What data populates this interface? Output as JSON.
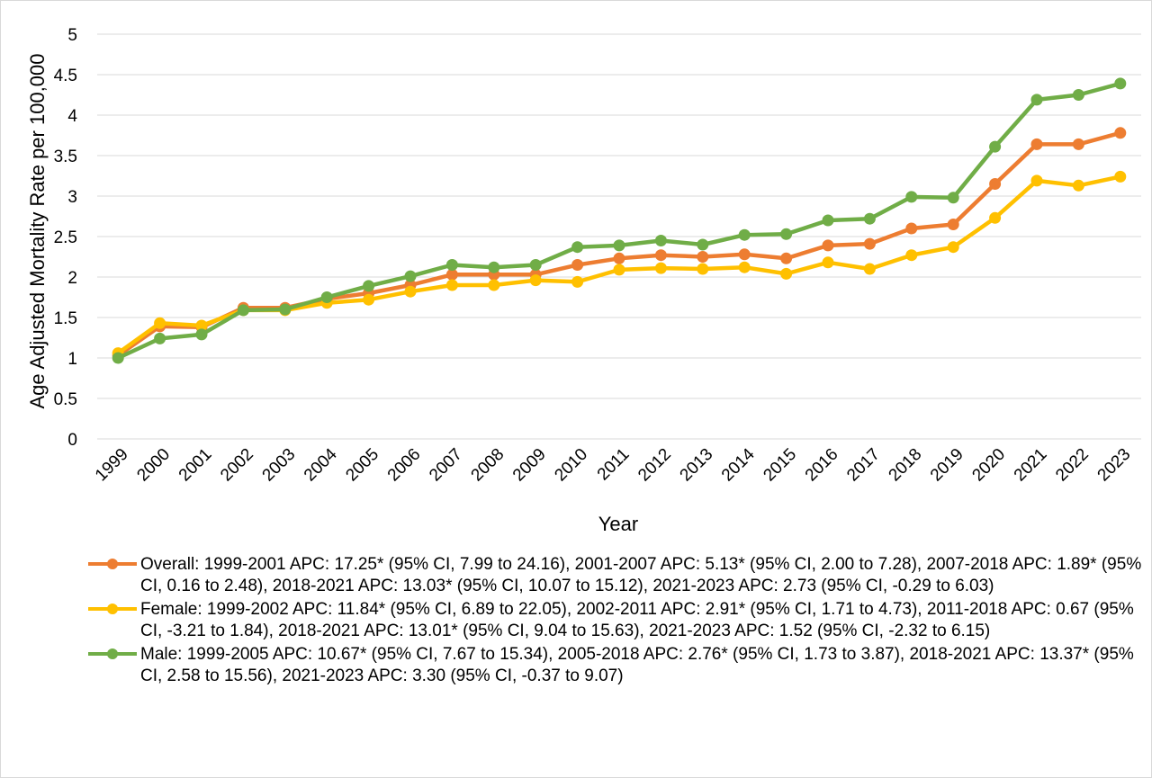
{
  "chart_data": {
    "type": "line",
    "xlabel": "Year",
    "ylabel": "Age Adjusted Mortality Rate per 100,000",
    "ylim": [
      0,
      5
    ],
    "yticks": [
      "0",
      "0.5",
      "1",
      "1.5",
      "2",
      "2.5",
      "3",
      "3.5",
      "4",
      "4.5",
      "5"
    ],
    "grid": "horizontal",
    "legend_position": "bottom",
    "categories": [
      "1999",
      "2000",
      "2001",
      "2002",
      "2003",
      "2004",
      "2005",
      "2006",
      "2007",
      "2008",
      "2009",
      "2010",
      "2011",
      "2012",
      "2013",
      "2014",
      "2015",
      "2016",
      "2017",
      "2018",
      "2019",
      "2020",
      "2021",
      "2022",
      "2023"
    ],
    "series": [
      {
        "name": "Overall: 1999-2001 APC: 17.25* (95% CI, 7.99 to 24.16), 2001-2007 APC: 5.13* (95% CI, 2.00 to 7.28), 2007-2018 APC: 1.89* (95% CI, 0.16 to 2.48), 2018-2021 APC: 13.03* (95% CI, 10.07 to 15.12), 2021-2023 APC: 2.73 (95% CI, -0.29 to 6.03)",
        "color": "#ed7d31",
        "values": [
          1.03,
          1.39,
          1.38,
          1.62,
          1.62,
          1.73,
          1.8,
          1.9,
          2.03,
          2.03,
          2.03,
          2.15,
          2.23,
          2.27,
          2.25,
          2.28,
          2.23,
          2.39,
          2.41,
          2.6,
          2.65,
          3.15,
          3.64,
          3.64,
          3.78
        ]
      },
      {
        "name": "Female: 1999-2002 APC: 11.84* (95% CI, 6.89 to 22.05), 2002-2011 APC: 2.91* (95% CI, 1.71 to 4.73), 2011-2018 APC: 0.67 (95% CI, -3.21 to 1.84), 2018-2021 APC: 13.01* (95% CI, 9.04 to 15.63), 2021-2023 APC: 1.52 (95% CI, -2.32 to 6.15)",
        "color": "#ffc000",
        "values": [
          1.06,
          1.43,
          1.4,
          1.59,
          1.59,
          1.68,
          1.72,
          1.82,
          1.9,
          1.9,
          1.96,
          1.94,
          2.09,
          2.11,
          2.1,
          2.12,
          2.04,
          2.18,
          2.1,
          2.27,
          2.37,
          2.73,
          3.19,
          3.13,
          3.24
        ]
      },
      {
        "name": "Male: 1999-2005 APC: 10.67* (95% CI, 7.67 to 15.34), 2005-2018 APC: 2.76* (95% CI, 1.73 to 3.87), 2018-2021 APC: 13.37* (95% CI, 2.58 to 15.56), 2021-2023 APC: 3.30 (95% CI, -0.37 to 9.07)",
        "color": "#70ad47",
        "values": [
          1.0,
          1.24,
          1.29,
          1.59,
          1.6,
          1.75,
          1.89,
          2.01,
          2.15,
          2.12,
          2.15,
          2.37,
          2.39,
          2.45,
          2.4,
          2.52,
          2.53,
          2.7,
          2.72,
          2.99,
          2.98,
          3.61,
          4.19,
          4.25,
          4.39
        ]
      }
    ]
  }
}
